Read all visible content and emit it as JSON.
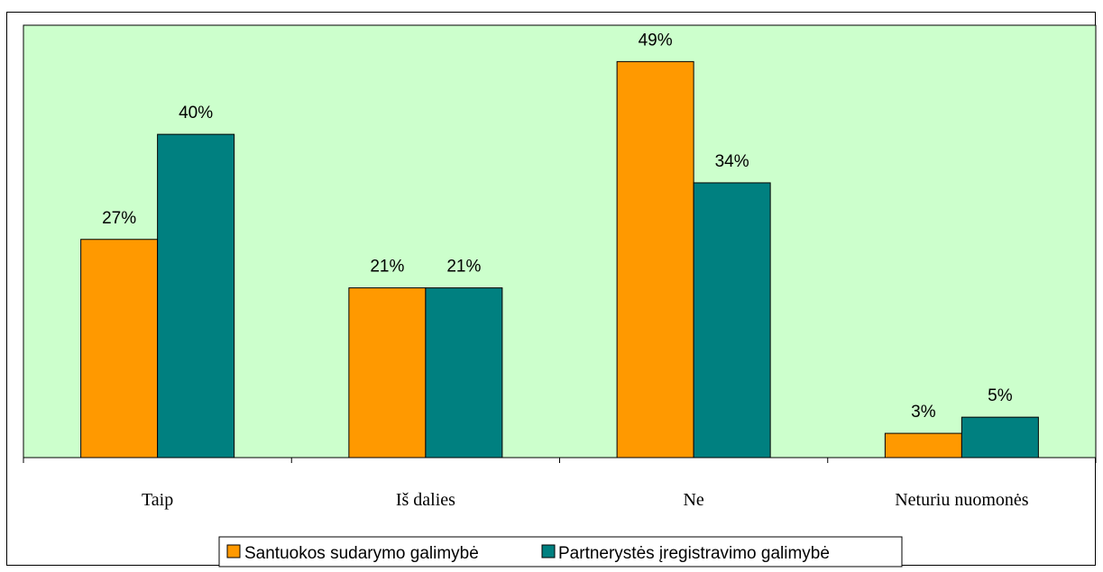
{
  "chart_data": {
    "type": "bar",
    "categories": [
      "Taip",
      "Iš dalies",
      "Ne",
      "Neturiu nuomonės"
    ],
    "series": [
      {
        "name": "Santuokos sudarymo galimybė",
        "values": [
          27,
          21,
          49,
          3
        ],
        "color": "#FF9900"
      },
      {
        "name": "Partnerystės įregistravimo galimybė",
        "values": [
          40,
          21,
          34,
          5
        ],
        "color": "#008080"
      }
    ],
    "value_labels": [
      [
        "27%",
        "21%",
        "49%",
        "3%"
      ],
      [
        "40%",
        "21%",
        "34%",
        "5%"
      ]
    ],
    "ylim": [
      0,
      53.5
    ],
    "grid": false,
    "legend_position": "bottom",
    "plot_background": "#CCFFCC"
  }
}
